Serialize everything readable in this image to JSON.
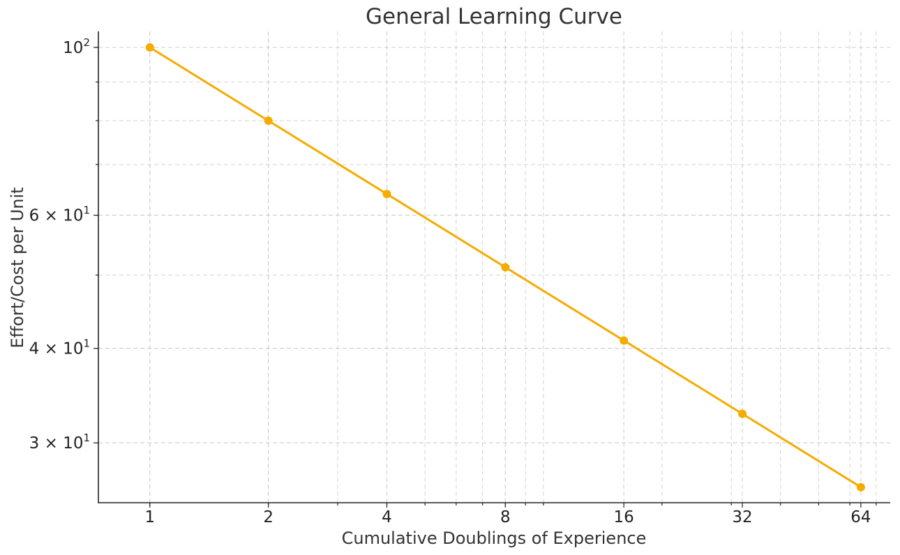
{
  "chart_data": {
    "type": "line",
    "title": "General Learning Curve",
    "xlabel": "Cumulative Doublings of Experience",
    "ylabel": "Effort/Cost per Unit",
    "xscale": "log2",
    "yscale": "log",
    "x": [
      1,
      2,
      4,
      8,
      16,
      32,
      64
    ],
    "series": [
      {
        "values": [
          100,
          80,
          64,
          51.2,
          40.96,
          32.77,
          26.21
        ],
        "color": "#f5ab00",
        "marker": "circle"
      }
    ],
    "xticks": [
      "1",
      "2",
      "4",
      "8",
      "16",
      "32",
      "64"
    ],
    "yticks": [
      {
        "value": 100,
        "base": "10",
        "exp": "2"
      },
      {
        "value": 60,
        "base": "6 × 10",
        "exp": "1"
      },
      {
        "value": 40,
        "base": "4 × 10",
        "exp": "1"
      },
      {
        "value": 30,
        "base": "3 × 10",
        "exp": "1"
      }
    ],
    "xlim": [
      0.74,
      76
    ],
    "ylim": [
      25,
      105
    ],
    "grid": true
  }
}
